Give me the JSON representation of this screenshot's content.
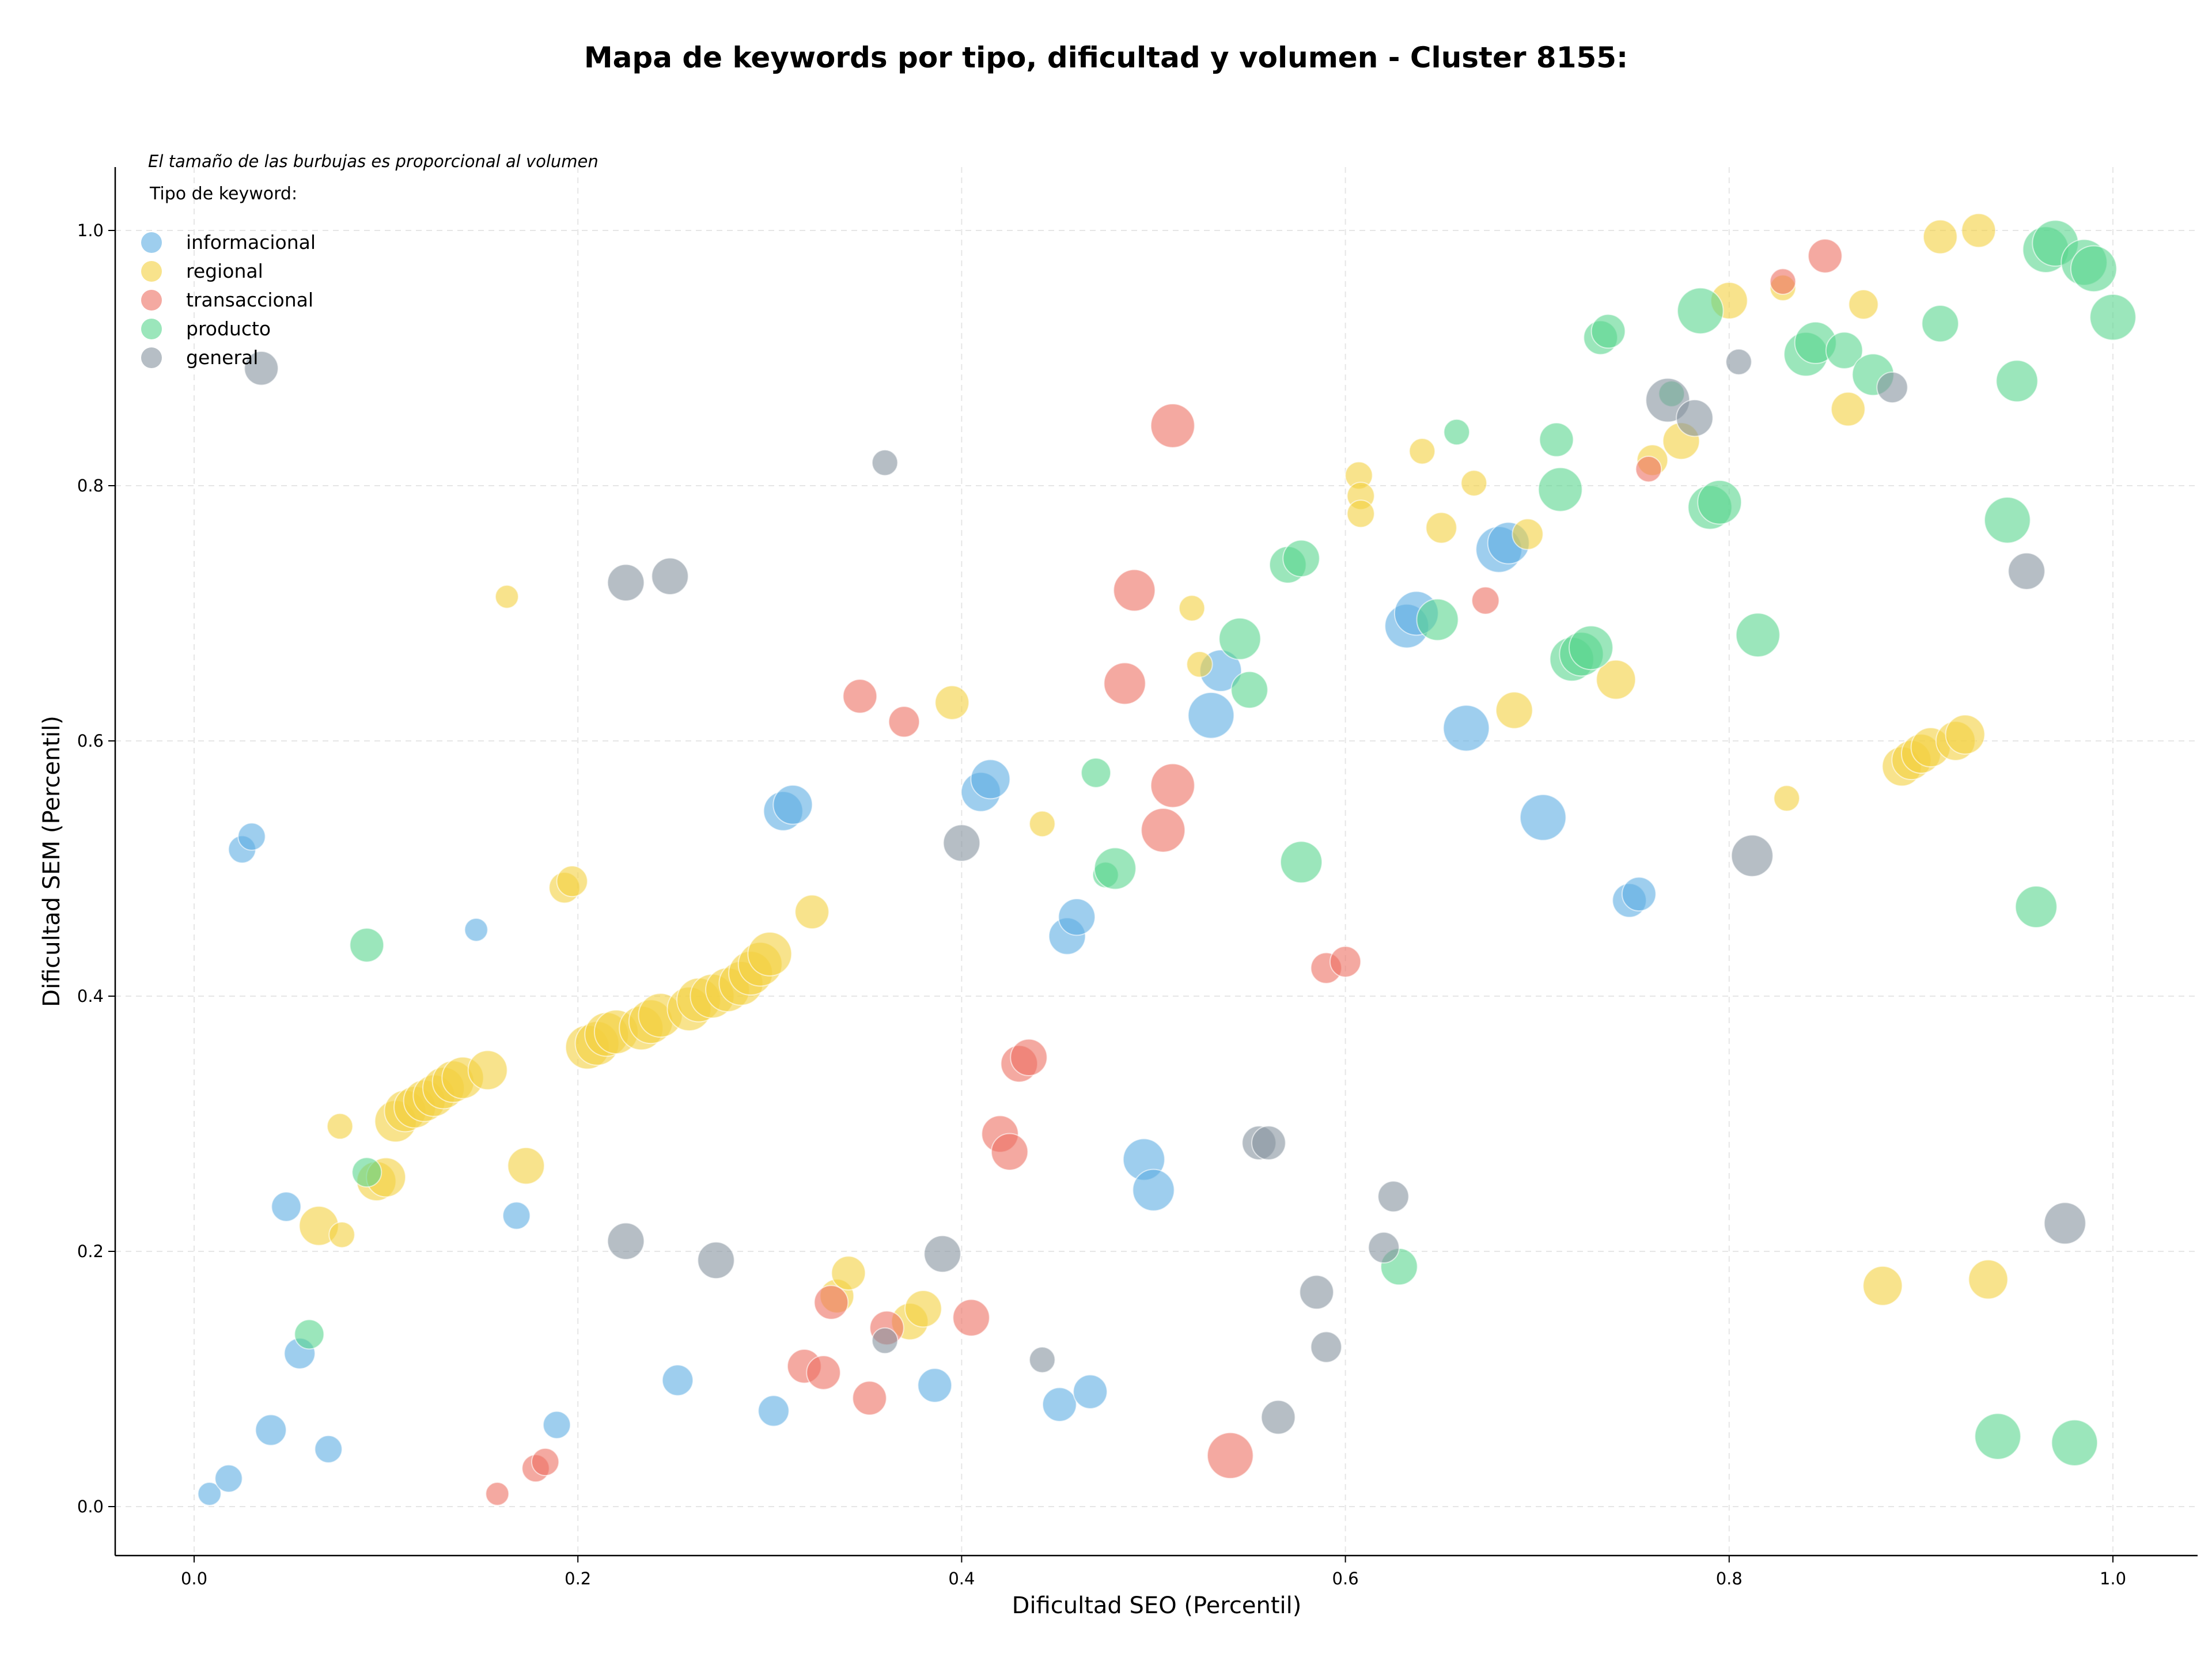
{
  "chart_data": {
    "type": "scatter",
    "title": "Mapa de keywords por tipo, dificultad y volumen - Cluster 8155:",
    "xlabel": "Dificultad SEO (Percentil)",
    "ylabel": "Dificultad SEM (Percentil)",
    "xlim": [
      -0.05,
      1.05
    ],
    "ylim": [
      -0.04,
      1.05
    ],
    "x_ticks": [
      "0.0",
      "0.2",
      "0.4",
      "0.6",
      "0.8",
      "1.0"
    ],
    "y_ticks": [
      "0.0",
      "0.2",
      "0.4",
      "0.6",
      "0.8",
      "1.0"
    ],
    "grid": true,
    "legend_placement": "top-left",
    "legend_title": "Tipo de keyword:",
    "note": "El tamaño de las burbujas es proporcional al volumen",
    "bubble_size_encodes": "volumen",
    "series": [
      {
        "name": "informacional",
        "color": "#5DADE2",
        "points": [
          [
            0.008,
            0.01,
            1
          ],
          [
            0.018,
            0.022,
            1.5
          ],
          [
            0.025,
            0.515,
            1.5
          ],
          [
            0.03,
            0.525,
            1.5
          ],
          [
            0.04,
            0.06,
            2
          ],
          [
            0.048,
            0.235,
            1.8
          ],
          [
            0.055,
            0.12,
            2
          ],
          [
            0.07,
            0.045,
            1.5
          ],
          [
            0.147,
            0.452,
            1
          ],
          [
            0.168,
            0.228,
            1.5
          ],
          [
            0.189,
            0.064,
            1.5
          ],
          [
            0.252,
            0.099,
            2
          ],
          [
            0.302,
            0.075,
            2
          ],
          [
            0.307,
            0.545,
            3.5
          ],
          [
            0.312,
            0.55,
            3.5
          ],
          [
            0.386,
            0.095,
            2.5
          ],
          [
            0.41,
            0.56,
            3.5
          ],
          [
            0.415,
            0.57,
            3.5
          ],
          [
            0.451,
            0.08,
            2.5
          ],
          [
            0.455,
            0.447,
            3
          ],
          [
            0.46,
            0.462,
            3
          ],
          [
            0.467,
            0.09,
            2.5
          ],
          [
            0.495,
            0.272,
            4
          ],
          [
            0.5,
            0.248,
            4
          ],
          [
            0.53,
            0.62,
            5
          ],
          [
            0.535,
            0.655,
            4
          ],
          [
            0.632,
            0.69,
            4.5
          ],
          [
            0.637,
            0.7,
            4.5
          ],
          [
            0.663,
            0.61,
            5
          ],
          [
            0.68,
            0.75,
            5
          ],
          [
            0.685,
            0.755,
            4
          ],
          [
            0.703,
            0.54,
            5
          ],
          [
            0.748,
            0.475,
            2.5
          ],
          [
            0.753,
            0.48,
            2.5
          ]
        ]
      },
      {
        "name": "regional",
        "color": "#F4D03F",
        "points": [
          [
            0.065,
            0.22,
            3.5
          ],
          [
            0.076,
            0.298,
            1.3
          ],
          [
            0.077,
            0.213,
            1.3
          ],
          [
            0.095,
            0.255,
            3.5
          ],
          [
            0.1,
            0.258,
            3.5
          ],
          [
            0.105,
            0.302,
            4
          ],
          [
            0.11,
            0.31,
            4
          ],
          [
            0.115,
            0.313,
            4
          ],
          [
            0.12,
            0.318,
            4
          ],
          [
            0.125,
            0.322,
            4
          ],
          [
            0.13,
            0.328,
            4
          ],
          [
            0.135,
            0.333,
            4
          ],
          [
            0.14,
            0.336,
            4
          ],
          [
            0.153,
            0.342,
            3.5
          ],
          [
            0.163,
            0.713,
            1
          ],
          [
            0.173,
            0.267,
            3
          ],
          [
            0.193,
            0.485,
            2
          ],
          [
            0.197,
            0.49,
            2
          ],
          [
            0.205,
            0.36,
            4.5
          ],
          [
            0.21,
            0.363,
            4.5
          ],
          [
            0.215,
            0.37,
            4.5
          ],
          [
            0.22,
            0.372,
            4.5
          ],
          [
            0.233,
            0.375,
            4.5
          ],
          [
            0.238,
            0.38,
            4.5
          ],
          [
            0.243,
            0.385,
            4.5
          ],
          [
            0.258,
            0.39,
            4.5
          ],
          [
            0.263,
            0.397,
            4.5
          ],
          [
            0.27,
            0.4,
            4.5
          ],
          [
            0.278,
            0.405,
            4.5
          ],
          [
            0.285,
            0.41,
            4.5
          ],
          [
            0.29,
            0.418,
            4.5
          ],
          [
            0.295,
            0.425,
            4.5
          ],
          [
            0.3,
            0.433,
            4.5
          ],
          [
            0.322,
            0.466,
            2.5
          ],
          [
            0.335,
            0.165,
            2.5
          ],
          [
            0.341,
            0.183,
            2.5
          ],
          [
            0.373,
            0.145,
            3
          ],
          [
            0.38,
            0.155,
            3
          ],
          [
            0.395,
            0.63,
            2.5
          ],
          [
            0.442,
            0.535,
            1.3
          ],
          [
            0.52,
            0.704,
            1.3
          ],
          [
            0.524,
            0.66,
            1.3
          ],
          [
            0.607,
            0.808,
            1.5
          ],
          [
            0.608,
            0.792,
            1.5
          ],
          [
            0.608,
            0.778,
            1.5
          ],
          [
            0.64,
            0.827,
            1.3
          ],
          [
            0.65,
            0.767,
            2
          ],
          [
            0.667,
            0.802,
            1.3
          ],
          [
            0.688,
            0.624,
            3
          ],
          [
            0.695,
            0.762,
            2
          ],
          [
            0.741,
            0.648,
            3.5
          ],
          [
            0.76,
            0.82,
            2
          ],
          [
            0.775,
            0.835,
            3
          ],
          [
            0.8,
            0.945,
            3
          ],
          [
            0.828,
            0.955,
            1.3
          ],
          [
            0.83,
            0.555,
            1.3
          ],
          [
            0.862,
            0.86,
            2.5
          ],
          [
            0.87,
            0.942,
            1.8
          ],
          [
            0.88,
            0.173,
            3.5
          ],
          [
            0.89,
            0.58,
            3.5
          ],
          [
            0.895,
            0.585,
            3.5
          ],
          [
            0.9,
            0.59,
            3.5
          ],
          [
            0.905,
            0.595,
            3.5
          ],
          [
            0.918,
            0.6,
            3.5
          ],
          [
            0.923,
            0.605,
            3.5
          ],
          [
            0.91,
            0.995,
            2.5
          ],
          [
            0.93,
            1.0,
            2.5
          ],
          [
            0.935,
            0.178,
            3.5
          ]
        ]
      },
      {
        "name": "transaccional",
        "color": "#EC7063",
        "points": [
          [
            0.158,
            0.01,
            1
          ],
          [
            0.178,
            0.03,
            1.5
          ],
          [
            0.183,
            0.035,
            1.5
          ],
          [
            0.318,
            0.11,
            2.5
          ],
          [
            0.328,
            0.105,
            2.5
          ],
          [
            0.332,
            0.16,
            2.5
          ],
          [
            0.347,
            0.635,
            2.5
          ],
          [
            0.352,
            0.085,
            2.5
          ],
          [
            0.361,
            0.14,
            2.5
          ],
          [
            0.37,
            0.615,
            2
          ],
          [
            0.405,
            0.148,
            3
          ],
          [
            0.42,
            0.292,
            3
          ],
          [
            0.425,
            0.278,
            3
          ],
          [
            0.43,
            0.347,
            3
          ],
          [
            0.435,
            0.352,
            3
          ],
          [
            0.485,
            0.645,
            4
          ],
          [
            0.49,
            0.718,
            4
          ],
          [
            0.505,
            0.53,
            4.5
          ],
          [
            0.51,
            0.847,
            4.5
          ],
          [
            0.51,
            0.565,
            4.5
          ],
          [
            0.54,
            0.04,
            5
          ],
          [
            0.59,
            0.422,
            2
          ],
          [
            0.6,
            0.427,
            2
          ],
          [
            0.673,
            0.71,
            1.5
          ],
          [
            0.758,
            0.813,
            1.3
          ],
          [
            0.828,
            0.96,
            1.3
          ],
          [
            0.85,
            0.98,
            2.5
          ]
        ]
      },
      {
        "name": "producto",
        "color": "#58D68D",
        "points": [
          [
            0.06,
            0.135,
            1.8
          ],
          [
            0.09,
            0.44,
            2.5
          ],
          [
            0.09,
            0.262,
            1.8
          ],
          [
            0.47,
            0.575,
            1.8
          ],
          [
            0.475,
            0.495,
            1.3
          ],
          [
            0.48,
            0.5,
            4
          ],
          [
            0.545,
            0.68,
            4
          ],
          [
            0.55,
            0.64,
            3
          ],
          [
            0.57,
            0.738,
            3
          ],
          [
            0.577,
            0.505,
            4
          ],
          [
            0.577,
            0.743,
            3
          ],
          [
            0.628,
            0.188,
            3
          ],
          [
            0.648,
            0.695,
            4
          ],
          [
            0.658,
            0.842,
            1.3
          ],
          [
            0.71,
            0.836,
            2.5
          ],
          [
            0.712,
            0.797,
            4.5
          ],
          [
            0.718,
            0.664,
            4.5
          ],
          [
            0.723,
            0.668,
            4.5
          ],
          [
            0.728,
            0.673,
            4.5
          ],
          [
            0.733,
            0.916,
            2.5
          ],
          [
            0.737,
            0.921,
            2.5
          ],
          [
            0.77,
            0.872,
            1.3
          ],
          [
            0.785,
            0.937,
            5
          ],
          [
            0.79,
            0.783,
            4.5
          ],
          [
            0.795,
            0.787,
            4.5
          ],
          [
            0.815,
            0.683,
            4.5
          ],
          [
            0.84,
            0.903,
            4.5
          ],
          [
            0.845,
            0.912,
            4
          ],
          [
            0.86,
            0.906,
            3
          ],
          [
            0.875,
            0.887,
            4
          ],
          [
            0.91,
            0.927,
            3
          ],
          [
            0.94,
            0.055,
            5
          ],
          [
            0.945,
            0.773,
            5
          ],
          [
            0.95,
            0.882,
            4
          ],
          [
            0.96,
            0.47,
            4
          ],
          [
            0.965,
            0.985,
            5
          ],
          [
            0.97,
            0.99,
            5
          ],
          [
            0.98,
            0.05,
            5
          ],
          [
            0.985,
            0.975,
            5
          ],
          [
            0.99,
            0.97,
            5
          ],
          [
            1.0,
            0.932,
            5
          ]
        ]
      },
      {
        "name": "general",
        "color": "#85929E",
        "points": [
          [
            0.035,
            0.892,
            2.5
          ],
          [
            0.225,
            0.208,
            3
          ],
          [
            0.225,
            0.724,
            3
          ],
          [
            0.248,
            0.729,
            3
          ],
          [
            0.272,
            0.193,
            3
          ],
          [
            0.36,
            0.818,
            1.3
          ],
          [
            0.36,
            0.13,
            1.3
          ],
          [
            0.39,
            0.198,
            3
          ],
          [
            0.4,
            0.52,
            3
          ],
          [
            0.442,
            0.115,
            1.3
          ],
          [
            0.555,
            0.285,
            2.5
          ],
          [
            0.56,
            0.285,
            2.5
          ],
          [
            0.565,
            0.07,
            2.5
          ],
          [
            0.585,
            0.168,
            2.5
          ],
          [
            0.59,
            0.125,
            2
          ],
          [
            0.62,
            0.203,
            2
          ],
          [
            0.625,
            0.243,
            2
          ],
          [
            0.768,
            0.867,
            4.5
          ],
          [
            0.782,
            0.853,
            3
          ],
          [
            0.805,
            0.897,
            1.3
          ],
          [
            0.812,
            0.51,
            4
          ],
          [
            0.885,
            0.877,
            2
          ],
          [
            0.955,
            0.733,
            3
          ],
          [
            0.975,
            0.222,
            4
          ]
        ]
      }
    ]
  }
}
